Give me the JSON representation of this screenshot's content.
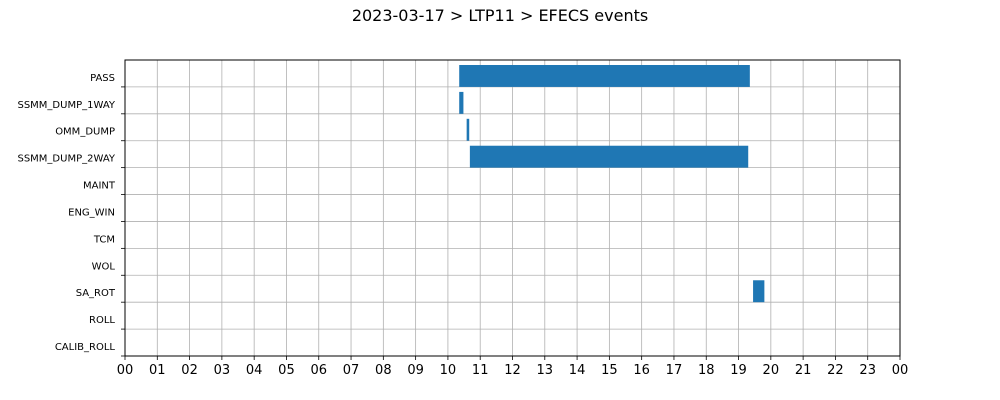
{
  "chart_data": {
    "type": "bar",
    "orientation": "horizontal-gantt",
    "title": "2023-03-17 > LTP11 > EFECS events",
    "xlabel": "",
    "ylabel": "",
    "xlim": [
      0,
      24
    ],
    "grid": true,
    "bar_color": "#1f77b4",
    "x_tick_labels": [
      "00",
      "01",
      "02",
      "03",
      "04",
      "05",
      "06",
      "07",
      "08",
      "09",
      "10",
      "11",
      "12",
      "13",
      "14",
      "15",
      "16",
      "17",
      "18",
      "19",
      "20",
      "21",
      "22",
      "23",
      "00"
    ],
    "categories": [
      "PASS",
      "SSMM_DUMP_1WAY",
      "OMM_DUMP",
      "SSMM_DUMP_2WAY",
      "MAINT",
      "ENG_WIN",
      "TCM",
      "WOL",
      "SA_ROT",
      "ROLL",
      "CALIB_ROLL"
    ],
    "events": [
      {
        "category": "PASS",
        "start": 10.35,
        "end": 19.35
      },
      {
        "category": "SSMM_DUMP_1WAY",
        "start": 10.35,
        "end": 10.48
      },
      {
        "category": "OMM_DUMP",
        "start": 10.58,
        "end": 10.66
      },
      {
        "category": "SSMM_DUMP_2WAY",
        "start": 10.68,
        "end": 19.3
      },
      {
        "category": "SA_ROT",
        "start": 19.45,
        "end": 19.8
      }
    ]
  }
}
